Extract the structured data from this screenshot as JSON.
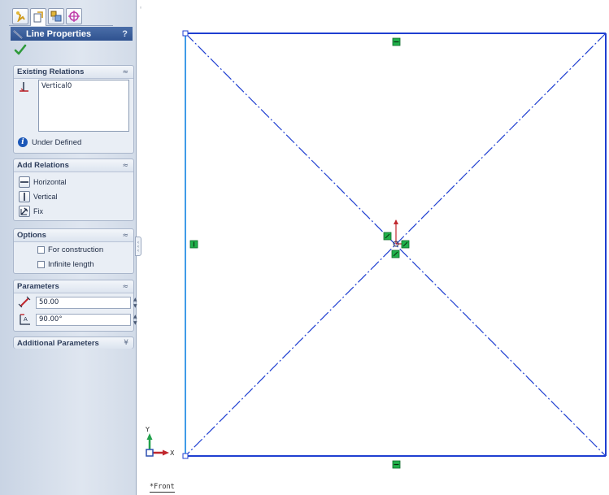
{
  "property_manager": {
    "tabs": [
      {
        "name": "featuremanager-tab",
        "icon": "featuremanager-tree-icon"
      },
      {
        "name": "propertymanager-tab",
        "icon": "propertymanager-icon"
      },
      {
        "name": "configurationmanager-tab",
        "icon": "configuration-manager-icon"
      },
      {
        "name": "dimxpert-tab",
        "icon": "dimxpert-crosshair-icon"
      }
    ],
    "title": "Line Properties",
    "help": "?",
    "existing_relations": {
      "title": "Existing Relations",
      "chevron": "≈",
      "items": [
        "Vertical0"
      ],
      "status": "Under Defined"
    },
    "add_relations": {
      "title": "Add Relations",
      "chevron": "≈",
      "buttons": [
        "Horizontal",
        "Vertical",
        "Fix"
      ]
    },
    "options": {
      "title": "Options",
      "chevron": "≈",
      "checkboxes": [
        {
          "label": "For construction",
          "checked": false
        },
        {
          "label": "Infinite length",
          "checked": false
        }
      ]
    },
    "parameters": {
      "title": "Parameters",
      "chevron": "≈",
      "length": "50.00",
      "angle": "90.00°"
    },
    "additional_parameters": {
      "title": "Additional Parameters",
      "chevron": "¥"
    }
  },
  "graphics": {
    "view_label": "*Front",
    "triad": {
      "x_label": "X",
      "y_label": "Y"
    },
    "colors": {
      "sketch_line": "#1f3fd1",
      "selected_line": "#3f9be8",
      "relation_marker": "#21b14b",
      "origin": "#c0272d",
      "axis_x": "#c0272d",
      "axis_y": "#21a14b"
    }
  }
}
